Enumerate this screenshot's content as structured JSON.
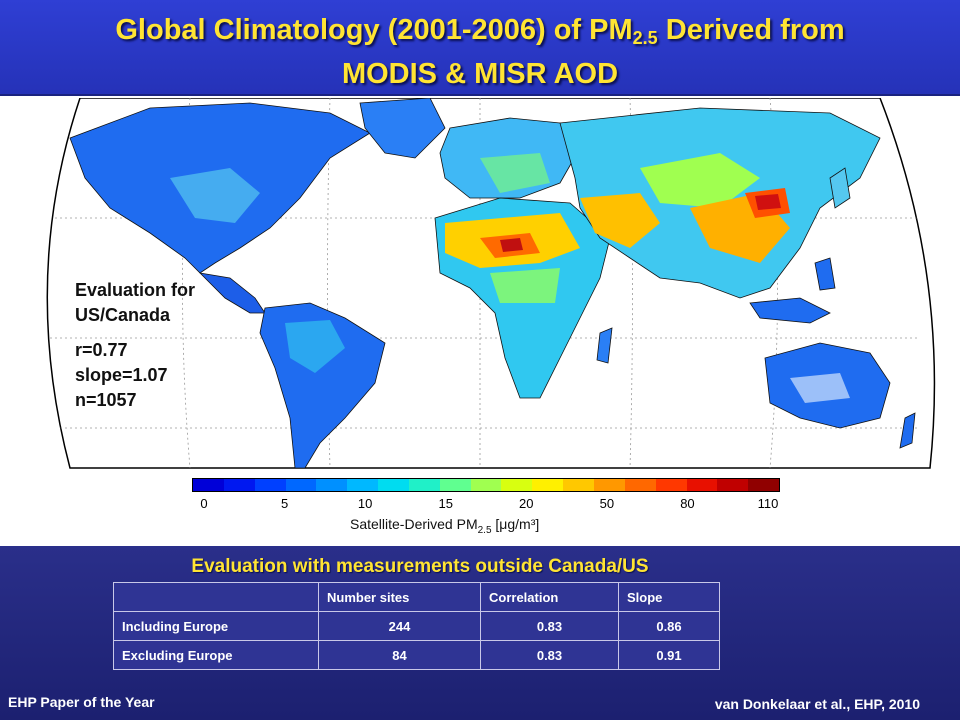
{
  "slide": {
    "title_line1_prefix": "Global Climatology (2001-2006) of PM",
    "title_subscript": "2.5",
    "title_line1_suffix": " Derived from",
    "title_line2": "MODIS & MISR AOD"
  },
  "map_overlay": {
    "eval_heading_line1": "Evaluation for",
    "eval_heading_line2": "US/Canada",
    "r": "r=0.77",
    "slope": "slope=1.07",
    "n": "n=1057"
  },
  "colorbar": {
    "ticks": [
      "0",
      "5",
      "10",
      "15",
      "20",
      "50",
      "80",
      "110"
    ],
    "label_prefix": "Satellite-Derived PM",
    "label_sub": "2.5",
    "label_units": " [μg/m³]",
    "colors": [
      "#0000d8",
      "#0018f0",
      "#0040ff",
      "#0068ff",
      "#0090ff",
      "#00b8ff",
      "#00dcf0",
      "#20f0c8",
      "#60ff90",
      "#a0ff50",
      "#d8ff10",
      "#fff000",
      "#ffc800",
      "#ff9800",
      "#ff6800",
      "#ff3800",
      "#e81000",
      "#c00000",
      "#900000"
    ]
  },
  "evaluation": {
    "title": "Evaluation with measurements outside Canada/US",
    "headers": [
      "",
      "Number sites",
      "Correlation",
      "Slope"
    ],
    "rows": [
      {
        "label": "Including Europe",
        "sites": "244",
        "corr": "0.83",
        "slope": "0.86"
      },
      {
        "label": "Excluding Europe",
        "sites": "84",
        "corr": "0.83",
        "slope": "0.91"
      }
    ]
  },
  "footer": {
    "left": "EHP Paper of the Year",
    "right": "van Donkelaar et al., EHP, 2010"
  }
}
